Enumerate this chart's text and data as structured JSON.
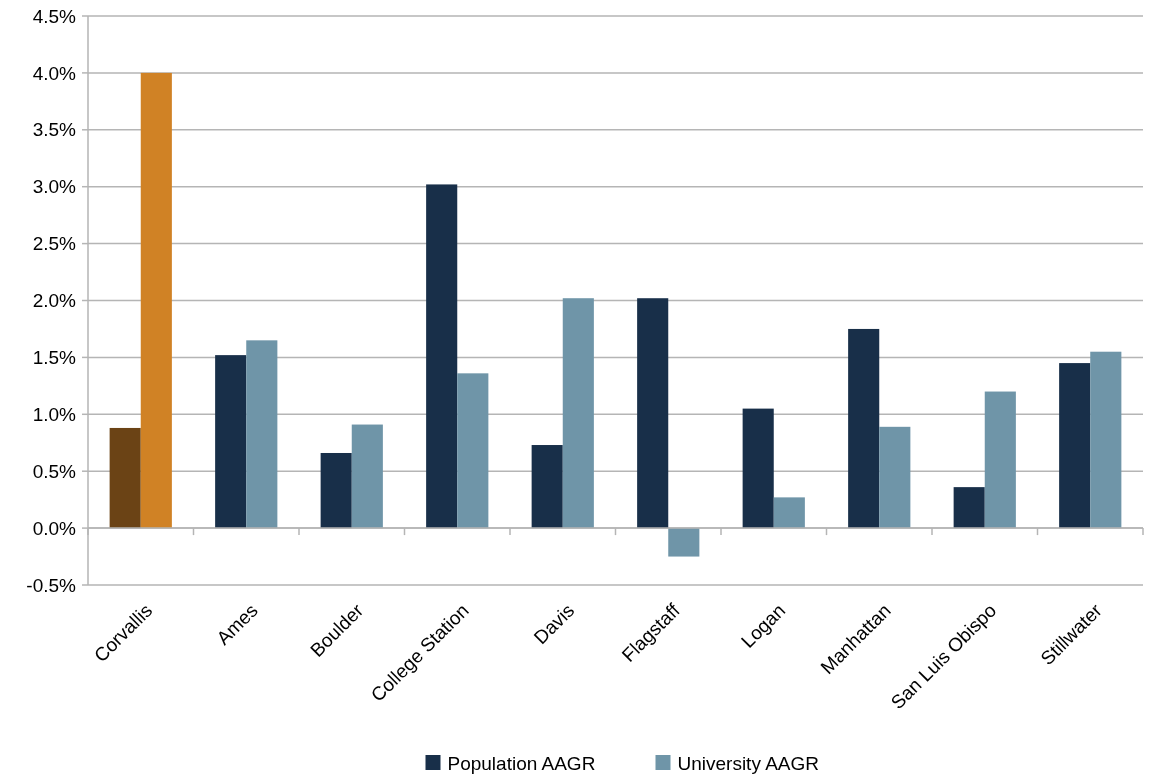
{
  "chart_data": {
    "type": "bar",
    "categories": [
      "Corvallis",
      "Ames",
      "Boulder",
      "College Station",
      "Davis",
      "Flagstaff",
      "Logan",
      "Manhattan",
      "San Luis Obispo",
      "Stillwater"
    ],
    "series": [
      {
        "name": "Population AAGR",
        "color": "#182f49",
        "colors": [
          "#6b4315",
          "#182f49",
          "#182f49",
          "#182f49",
          "#182f49",
          "#182f49",
          "#182f49",
          "#182f49",
          "#182f49",
          "#182f49"
        ],
        "values": [
          0.88,
          1.52,
          0.66,
          3.02,
          0.73,
          2.02,
          1.05,
          1.75,
          0.36,
          1.45
        ]
      },
      {
        "name": "University AAGR",
        "color": "#6f95a8",
        "colors": [
          "#d08225",
          "#6f95a8",
          "#6f95a8",
          "#6f95a8",
          "#6f95a8",
          "#6f95a8",
          "#6f95a8",
          "#6f95a8",
          "#6f95a8",
          "#6f95a8"
        ],
        "values": [
          4.0,
          1.65,
          0.91,
          1.36,
          2.02,
          -0.25,
          0.27,
          0.89,
          1.2,
          1.55
        ]
      }
    ],
    "ylim": [
      -0.5,
      4.5
    ],
    "yticks": [
      {
        "value": -0.5,
        "label": "-0.5%"
      },
      {
        "value": 0,
        "label": "0.0%"
      },
      {
        "value": 0.5,
        "label": "0.5%"
      },
      {
        "value": 1,
        "label": "1.0%"
      },
      {
        "value": 1.5,
        "label": "1.5%"
      },
      {
        "value": 2,
        "label": "2.0%"
      },
      {
        "value": 2.5,
        "label": "2.5%"
      },
      {
        "value": 3,
        "label": "3.0%"
      },
      {
        "value": 3.5,
        "label": "3.5%"
      },
      {
        "value": 4,
        "label": "4.0%"
      },
      {
        "value": 4.5,
        "label": "4.5%"
      }
    ],
    "grid": "y",
    "legend": "bottom"
  }
}
